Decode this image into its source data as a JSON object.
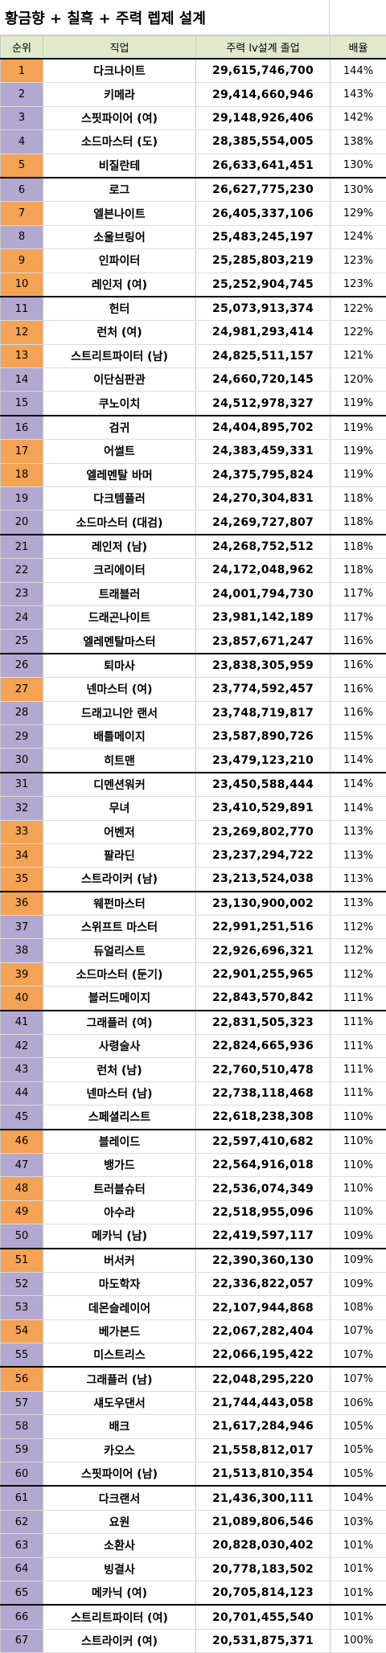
{
  "title": "황금향 + 칠흑 + 주력 렙제 설계",
  "headers": {
    "rank": "순위",
    "job": "직업",
    "total": "주력 lv설계 졸업",
    "ratio": "배율"
  },
  "colors": {
    "orange": "#f4a254",
    "purple": "#b3a8cf",
    "header_bg": "#dfeacc"
  },
  "rows": [
    {
      "rank": "1",
      "job": "다크나이트",
      "total": "29,615,746,700",
      "ratio": "144%",
      "color": "orange"
    },
    {
      "rank": "2",
      "job": "키메라",
      "total": "29,414,660,946",
      "ratio": "143%",
      "color": "purple"
    },
    {
      "rank": "3",
      "job": "스핏파이어 (여)",
      "total": "29,148,926,406",
      "ratio": "142%",
      "color": "purple"
    },
    {
      "rank": "4",
      "job": "소드마스터 (도)",
      "total": "28,385,554,005",
      "ratio": "138%",
      "color": "purple"
    },
    {
      "rank": "5",
      "job": "비질란테",
      "total": "26,633,641,451",
      "ratio": "130%",
      "color": "orange"
    },
    {
      "rank": "6",
      "job": "로그",
      "total": "26,627,775,230",
      "ratio": "130%",
      "color": "purple"
    },
    {
      "rank": "7",
      "job": "엘븐나이트",
      "total": "26,405,337,106",
      "ratio": "129%",
      "color": "orange"
    },
    {
      "rank": "8",
      "job": "소울브링어",
      "total": "25,483,245,197",
      "ratio": "124%",
      "color": "purple"
    },
    {
      "rank": "9",
      "job": "인파이터",
      "total": "25,285,803,219",
      "ratio": "123%",
      "color": "orange"
    },
    {
      "rank": "10",
      "job": "레인저 (여)",
      "total": "25,252,904,745",
      "ratio": "123%",
      "color": "orange"
    },
    {
      "rank": "11",
      "job": "헌터",
      "total": "25,073,913,374",
      "ratio": "122%",
      "color": "purple"
    },
    {
      "rank": "12",
      "job": "런처 (여)",
      "total": "24,981,293,414",
      "ratio": "122%",
      "color": "orange"
    },
    {
      "rank": "13",
      "job": "스트리트파이터 (남)",
      "total": "24,825,511,157",
      "ratio": "121%",
      "color": "orange"
    },
    {
      "rank": "14",
      "job": "이단심판관",
      "total": "24,660,720,145",
      "ratio": "120%",
      "color": "purple"
    },
    {
      "rank": "15",
      "job": "쿠노이치",
      "total": "24,512,978,327",
      "ratio": "119%",
      "color": "purple"
    },
    {
      "rank": "16",
      "job": "검귀",
      "total": "24,404,895,702",
      "ratio": "119%",
      "color": "purple"
    },
    {
      "rank": "17",
      "job": "어썰트",
      "total": "24,383,459,331",
      "ratio": "119%",
      "color": "orange"
    },
    {
      "rank": "18",
      "job": "엘레멘탈 바머",
      "total": "24,375,795,824",
      "ratio": "119%",
      "color": "orange"
    },
    {
      "rank": "19",
      "job": "다크템플러",
      "total": "24,270,304,831",
      "ratio": "118%",
      "color": "purple"
    },
    {
      "rank": "20",
      "job": "소드마스터 (대검)",
      "total": "24,269,727,807",
      "ratio": "118%",
      "color": "purple"
    },
    {
      "rank": "21",
      "job": "레인저 (남)",
      "total": "24,268,752,512",
      "ratio": "118%",
      "color": "purple"
    },
    {
      "rank": "22",
      "job": "크리에이터",
      "total": "24,172,048,962",
      "ratio": "118%",
      "color": "purple"
    },
    {
      "rank": "23",
      "job": "트래블러",
      "total": "24,001,794,730",
      "ratio": "117%",
      "color": "purple"
    },
    {
      "rank": "24",
      "job": "드래곤나이트",
      "total": "23,981,142,189",
      "ratio": "117%",
      "color": "purple"
    },
    {
      "rank": "25",
      "job": "엘레멘탈마스터",
      "total": "23,857,671,247",
      "ratio": "116%",
      "color": "purple"
    },
    {
      "rank": "26",
      "job": "퇴마사",
      "total": "23,838,305,959",
      "ratio": "116%",
      "color": "purple"
    },
    {
      "rank": "27",
      "job": "넨마스터 (여)",
      "total": "23,774,592,457",
      "ratio": "116%",
      "color": "orange"
    },
    {
      "rank": "28",
      "job": "드래고니안 랜서",
      "total": "23,748,719,817",
      "ratio": "116%",
      "color": "purple"
    },
    {
      "rank": "29",
      "job": "배틀메이지",
      "total": "23,587,890,726",
      "ratio": "115%",
      "color": "purple"
    },
    {
      "rank": "30",
      "job": "히트맨",
      "total": "23,479,123,210",
      "ratio": "114%",
      "color": "purple"
    },
    {
      "rank": "31",
      "job": "디멘션워커",
      "total": "23,450,588,444",
      "ratio": "114%",
      "color": "purple"
    },
    {
      "rank": "32",
      "job": "무녀",
      "total": "23,410,529,891",
      "ratio": "114%",
      "color": "purple"
    },
    {
      "rank": "33",
      "job": "어벤저",
      "total": "23,269,802,770",
      "ratio": "113%",
      "color": "orange"
    },
    {
      "rank": "34",
      "job": "팔라딘",
      "total": "23,237,294,722",
      "ratio": "113%",
      "color": "orange"
    },
    {
      "rank": "35",
      "job": "스트라이커 (남)",
      "total": "23,213,524,038",
      "ratio": "113%",
      "color": "orange"
    },
    {
      "rank": "36",
      "job": "웨펀마스터",
      "total": "23,130,900,002",
      "ratio": "113%",
      "color": "orange"
    },
    {
      "rank": "37",
      "job": "스위프트 마스터",
      "total": "22,991,251,516",
      "ratio": "112%",
      "color": "purple"
    },
    {
      "rank": "38",
      "job": "듀얼리스트",
      "total": "22,926,696,321",
      "ratio": "112%",
      "color": "purple"
    },
    {
      "rank": "39",
      "job": "소드마스터 (둔기)",
      "total": "22,901,255,965",
      "ratio": "112%",
      "color": "orange"
    },
    {
      "rank": "40",
      "job": "블러드메이지",
      "total": "22,843,570,842",
      "ratio": "111%",
      "color": "orange"
    },
    {
      "rank": "41",
      "job": "그래플러 (여)",
      "total": "22,831,505,323",
      "ratio": "111%",
      "color": "purple"
    },
    {
      "rank": "42",
      "job": "사령술사",
      "total": "22,824,665,936",
      "ratio": "111%",
      "color": "purple"
    },
    {
      "rank": "43",
      "job": "런처 (남)",
      "total": "22,760,510,478",
      "ratio": "111%",
      "color": "purple"
    },
    {
      "rank": "44",
      "job": "넨마스터 (남)",
      "total": "22,738,118,468",
      "ratio": "111%",
      "color": "purple"
    },
    {
      "rank": "45",
      "job": "스페셜리스트",
      "total": "22,618,238,308",
      "ratio": "110%",
      "color": "purple"
    },
    {
      "rank": "46",
      "job": "블레이드",
      "total": "22,597,410,682",
      "ratio": "110%",
      "color": "orange"
    },
    {
      "rank": "47",
      "job": "뱅가드",
      "total": "22,564,916,018",
      "ratio": "110%",
      "color": "purple"
    },
    {
      "rank": "48",
      "job": "트러블슈터",
      "total": "22,536,074,349",
      "ratio": "110%",
      "color": "orange"
    },
    {
      "rank": "49",
      "job": "아수라",
      "total": "22,518,955,096",
      "ratio": "110%",
      "color": "orange"
    },
    {
      "rank": "50",
      "job": "메카닉 (남)",
      "total": "22,419,597,117",
      "ratio": "109%",
      "color": "purple"
    },
    {
      "rank": "51",
      "job": "버서커",
      "total": "22,390,360,130",
      "ratio": "109%",
      "color": "orange"
    },
    {
      "rank": "52",
      "job": "마도학자",
      "total": "22,336,822,057",
      "ratio": "109%",
      "color": "purple"
    },
    {
      "rank": "53",
      "job": "데몬슬레이어",
      "total": "22,107,944,868",
      "ratio": "108%",
      "color": "purple"
    },
    {
      "rank": "54",
      "job": "베가본드",
      "total": "22,067,282,404",
      "ratio": "107%",
      "color": "orange"
    },
    {
      "rank": "55",
      "job": "미스트리스",
      "total": "22,066,195,422",
      "ratio": "107%",
      "color": "purple"
    },
    {
      "rank": "56",
      "job": "그래플러 (남)",
      "total": "22,048,295,220",
      "ratio": "107%",
      "color": "orange"
    },
    {
      "rank": "57",
      "job": "섀도우댄서",
      "total": "21,744,443,058",
      "ratio": "106%",
      "color": "purple"
    },
    {
      "rank": "58",
      "job": "배크",
      "total": "21,617,284,946",
      "ratio": "105%",
      "color": "purple"
    },
    {
      "rank": "59",
      "job": "카오스",
      "total": "21,558,812,017",
      "ratio": "105%",
      "color": "purple"
    },
    {
      "rank": "60",
      "job": "스핏파이어 (남)",
      "total": "21,513,810,354",
      "ratio": "105%",
      "color": "purple"
    },
    {
      "rank": "61",
      "job": "다크랜서",
      "total": "21,436,300,111",
      "ratio": "104%",
      "color": "purple"
    },
    {
      "rank": "62",
      "job": "요원",
      "total": "21,089,806,546",
      "ratio": "103%",
      "color": "purple"
    },
    {
      "rank": "63",
      "job": "소환사",
      "total": "20,828,030,402",
      "ratio": "101%",
      "color": "purple"
    },
    {
      "rank": "64",
      "job": "빙결사",
      "total": "20,778,183,502",
      "ratio": "101%",
      "color": "purple"
    },
    {
      "rank": "65",
      "job": "메카닉 (여)",
      "total": "20,705,814,123",
      "ratio": "101%",
      "color": "purple"
    },
    {
      "rank": "66",
      "job": "스트리트파이터 (여)",
      "total": "20,701,455,540",
      "ratio": "101%",
      "color": "purple"
    },
    {
      "rank": "67",
      "job": "스트라이커 (여)",
      "total": "20,531,875,371",
      "ratio": "100%",
      "color": "purple"
    }
  ]
}
